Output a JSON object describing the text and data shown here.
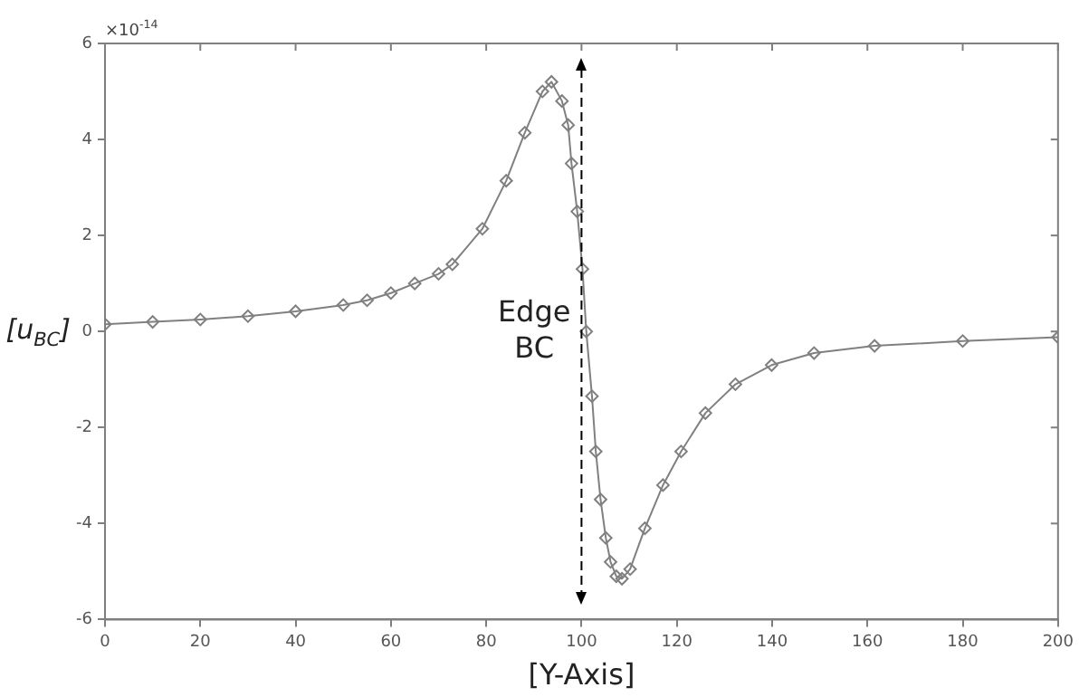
{
  "chart_data": {
    "type": "line",
    "xlabel": "[Y-Axis]",
    "ylabel": "[u$_{BC}$]",
    "x": [
      0,
      10,
      20,
      30,
      40,
      50,
      55,
      60,
      65,
      70,
      72.9,
      79.2,
      84.2,
      88.1,
      91.8,
      93.7,
      95.9,
      97.2,
      97.9,
      99.1,
      100.2,
      101,
      102.2,
      103,
      104,
      105.1,
      106.1,
      107.3,
      108.5,
      110.2,
      113.3,
      117.1,
      120.9,
      126,
      132.3,
      139.9,
      148.8,
      161.5,
      180,
      200
    ],
    "series": [
      {
        "color": "#808080",
        "values": [
          0.15,
          0.2,
          0.25,
          0.32,
          0.42,
          0.55,
          0.65,
          0.8,
          1.0,
          1.2,
          1.4,
          2.14,
          3.14,
          4.14,
          5.0,
          5.2,
          4.8,
          4.3,
          3.5,
          2.5,
          1.3,
          0,
          -1.35,
          -2.5,
          -3.5,
          -4.3,
          -4.8,
          -5.1,
          -5.15,
          -4.95,
          -4.1,
          -3.2,
          -2.5,
          -1.7,
          -1.1,
          -0.7,
          -0.45,
          -0.3,
          -0.2,
          -0.12
        ]
      }
    ],
    "xlim": [
      0,
      200
    ],
    "xticks": [
      0,
      20,
      40,
      60,
      80,
      100,
      120,
      140,
      160,
      180,
      200
    ],
    "ylim": [
      -6,
      6
    ],
    "yticks": [
      -6,
      -4,
      -2,
      0,
      2,
      4,
      6
    ],
    "marker": "diamond",
    "line_style": "solid",
    "grid": false,
    "legend": false,
    "ref_lines": [
      {
        "axis": "x",
        "value": 100,
        "label": "Edge BC",
        "color": "#000000",
        "line_style": "dashed"
      }
    ],
    "annotations": [
      "×10$^{-14}$"
    ]
  }
}
